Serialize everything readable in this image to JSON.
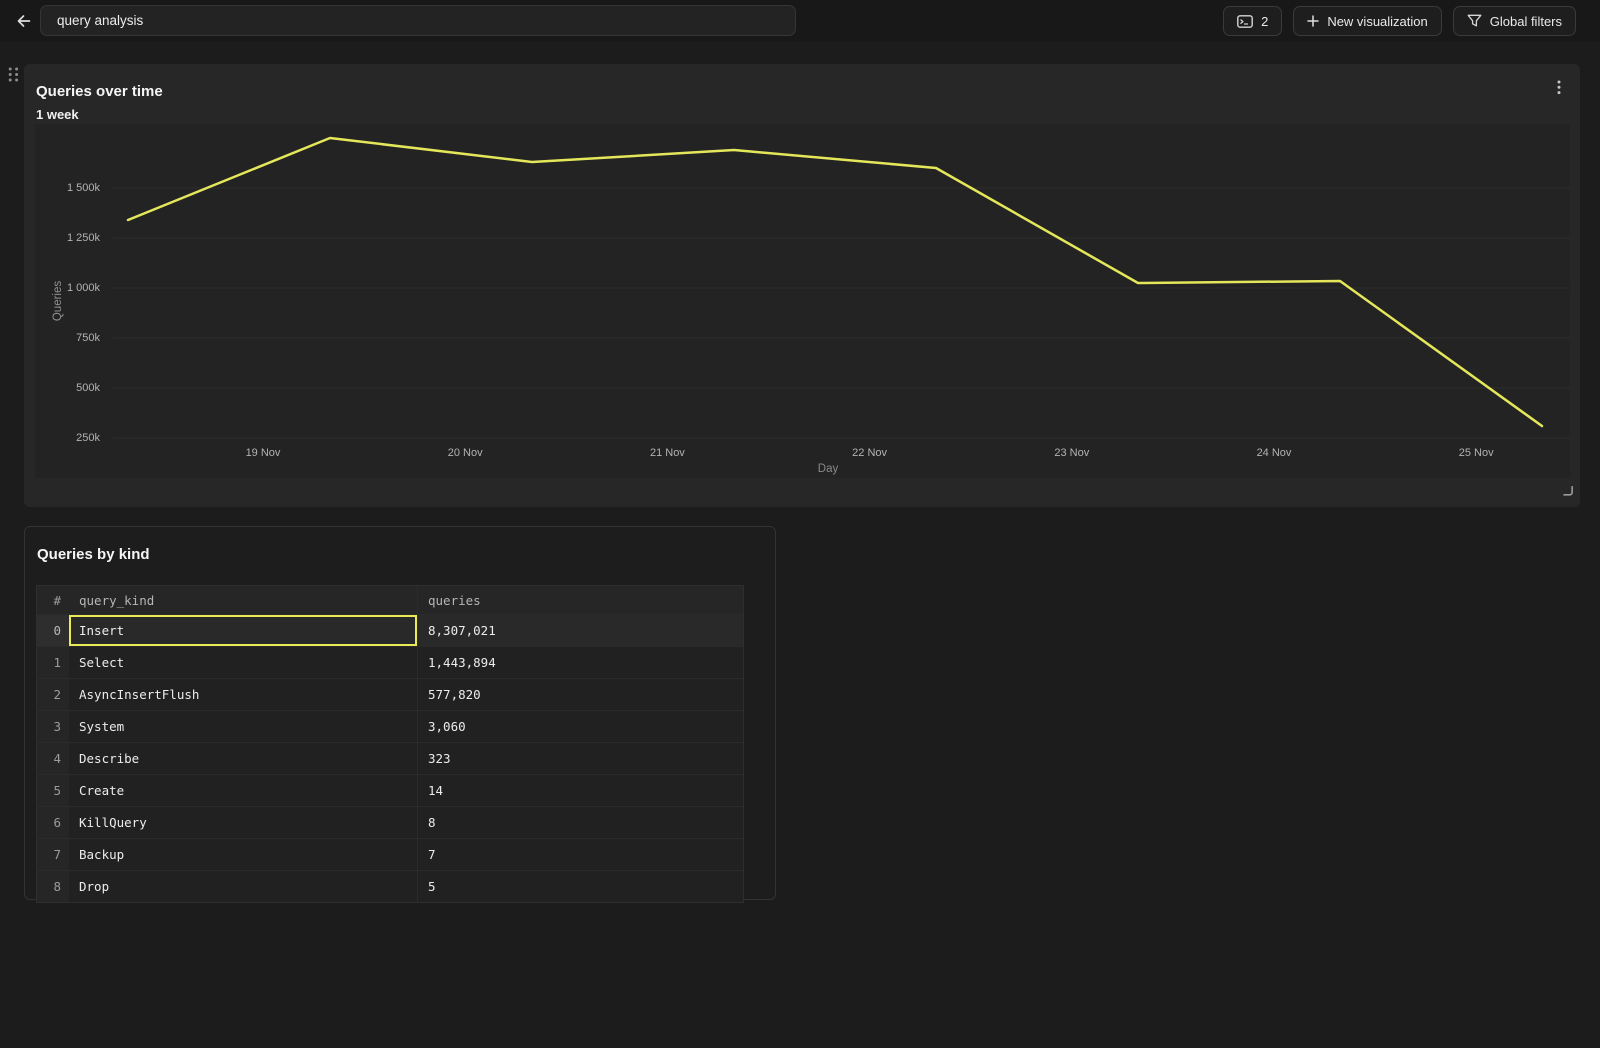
{
  "topbar": {
    "back_button": {
      "icon": "arrow-left-icon"
    },
    "title_input": {
      "value": "query analysis"
    },
    "console_button": {
      "icon": "terminal-icon",
      "count": "2"
    },
    "new_visualization_button": {
      "icon": "plus-icon",
      "label": "New visualization"
    },
    "global_filters_button": {
      "icon": "funnel-icon",
      "label": "Global filters"
    }
  },
  "chart_panel": {
    "title": "Queries over time",
    "subtitle": "1 week",
    "menu_icon": "kebab-vertical-icon",
    "drag_icon": "drag-dots-icon",
    "resize_icon": "resize-corner-icon"
  },
  "chart_data": {
    "type": "line",
    "title": "Queries over time",
    "subtitle": "1 week",
    "xlabel": "Day",
    "ylabel": "Queries",
    "x_tick_labels": [
      "19 Nov",
      "20 Nov",
      "21 Nov",
      "22 Nov",
      "23 Nov",
      "24 Nov",
      "25 Nov"
    ],
    "y_tick_labels": [
      "1 500k",
      "1 250k",
      "1 000k",
      "750k",
      "500k",
      "250k"
    ],
    "y_tick_values_k": [
      1500,
      1250,
      1000,
      750,
      500,
      250
    ],
    "ylim_k": [
      50,
      1820
    ],
    "grid": "horizontal",
    "legend": "none",
    "series": [
      {
        "name": "queries",
        "color": "#e5e75a",
        "values_k": [
          1340,
          1750,
          1630,
          1690,
          1600,
          1025,
          1035,
          310
        ]
      }
    ]
  },
  "table_panel": {
    "title": "Queries by kind",
    "columns": [
      "#",
      "query_kind",
      "queries"
    ],
    "rows": [
      {
        "index": "0",
        "query_kind": "Insert",
        "queries": "8,307,021",
        "selected": true
      },
      {
        "index": "1",
        "query_kind": "Select",
        "queries": "1,443,894",
        "selected": false
      },
      {
        "index": "2",
        "query_kind": "AsyncInsertFlush",
        "queries": "577,820",
        "selected": false
      },
      {
        "index": "3",
        "query_kind": "System",
        "queries": "3,060",
        "selected": false
      },
      {
        "index": "4",
        "query_kind": "Describe",
        "queries": "323",
        "selected": false
      },
      {
        "index": "5",
        "query_kind": "Create",
        "queries": "14",
        "selected": false
      },
      {
        "index": "6",
        "query_kind": "KillQuery",
        "queries": "8",
        "selected": false
      },
      {
        "index": "7",
        "query_kind": "Backup",
        "queries": "7",
        "selected": false
      },
      {
        "index": "8",
        "query_kind": "Drop",
        "queries": "5",
        "selected": false
      }
    ]
  },
  "colors": {
    "page_bg": "#1c1c1c",
    "topbar_bg": "#181818",
    "chart_panel_bg": "#272727",
    "plot_bg": "#232323",
    "table_panel_bg": "#1d1d1d",
    "gridline": "#2e2e2e",
    "accent_line": "#e5e75a",
    "selected_cell_border": "#e9ea55"
  }
}
